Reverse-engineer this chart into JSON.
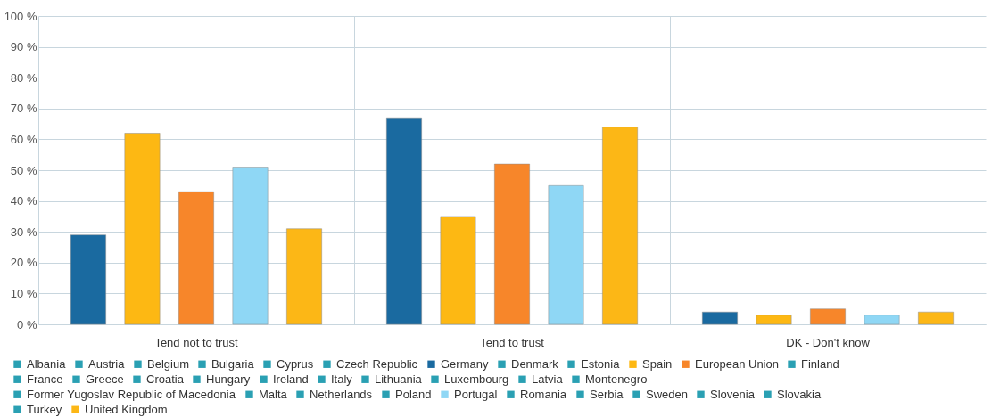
{
  "chart_data": {
    "type": "bar",
    "categories": [
      "Tend not to trust",
      "Tend to trust",
      "DK - Don't know"
    ],
    "ylim": [
      0,
      100
    ],
    "yticks": [
      {
        "value": 0,
        "label": "0 %"
      },
      {
        "value": 10,
        "label": "10 %"
      },
      {
        "value": 20,
        "label": "20 %"
      },
      {
        "value": 30,
        "label": "30 %"
      },
      {
        "value": 40,
        "label": "40 %"
      },
      {
        "value": 50,
        "label": "50 %"
      },
      {
        "value": 60,
        "label": "60 %"
      },
      {
        "value": 70,
        "label": "70 %"
      },
      {
        "value": 80,
        "label": "80 %"
      },
      {
        "value": 90,
        "label": "90 %"
      },
      {
        "value": 100,
        "label": "100 %"
      }
    ],
    "grid": true,
    "legend": "bottom",
    "series": [
      {
        "name": "Albania",
        "color": "#2aa0b3",
        "values": [
          null,
          null,
          null
        ]
      },
      {
        "name": "Austria",
        "color": "#2aa0b3",
        "values": [
          null,
          null,
          null
        ]
      },
      {
        "name": "Belgium",
        "color": "#2aa0b3",
        "values": [
          null,
          null,
          null
        ]
      },
      {
        "name": "Bulgaria",
        "color": "#2aa0b3",
        "values": [
          null,
          null,
          null
        ]
      },
      {
        "name": "Cyprus",
        "color": "#2aa0b3",
        "values": [
          null,
          null,
          null
        ]
      },
      {
        "name": "Czech Republic",
        "color": "#2aa0b3",
        "values": [
          null,
          null,
          null
        ]
      },
      {
        "name": "Germany",
        "color": "#1a6aa0",
        "values": [
          29,
          67,
          4
        ]
      },
      {
        "name": "Denmark",
        "color": "#2aa0b3",
        "values": [
          null,
          null,
          null
        ]
      },
      {
        "name": "Estonia",
        "color": "#2aa0b3",
        "values": [
          null,
          null,
          null
        ]
      },
      {
        "name": "Spain",
        "color": "#fdb813",
        "values": [
          62,
          35,
          3
        ]
      },
      {
        "name": "European Union",
        "color": "#f7862a",
        "values": [
          43,
          52,
          5
        ]
      },
      {
        "name": "Finland",
        "color": "#2aa0b3",
        "values": [
          null,
          null,
          null
        ]
      },
      {
        "name": "France",
        "color": "#2aa0b3",
        "values": [
          null,
          null,
          null
        ]
      },
      {
        "name": "Greece",
        "color": "#2aa0b3",
        "values": [
          null,
          null,
          null
        ]
      },
      {
        "name": "Croatia",
        "color": "#2aa0b3",
        "values": [
          null,
          null,
          null
        ]
      },
      {
        "name": "Hungary",
        "color": "#2aa0b3",
        "values": [
          null,
          null,
          null
        ]
      },
      {
        "name": "Ireland",
        "color": "#2aa0b3",
        "values": [
          null,
          null,
          null
        ]
      },
      {
        "name": "Italy",
        "color": "#2aa0b3",
        "values": [
          null,
          null,
          null
        ]
      },
      {
        "name": "Lithuania",
        "color": "#2aa0b3",
        "values": [
          null,
          null,
          null
        ]
      },
      {
        "name": "Luxembourg",
        "color": "#2aa0b3",
        "values": [
          null,
          null,
          null
        ]
      },
      {
        "name": "Latvia",
        "color": "#2aa0b3",
        "values": [
          null,
          null,
          null
        ]
      },
      {
        "name": "Montenegro",
        "color": "#2aa0b3",
        "values": [
          null,
          null,
          null
        ]
      },
      {
        "name": "Former Yugoslav Republic of Macedonia",
        "color": "#2aa0b3",
        "values": [
          null,
          null,
          null
        ]
      },
      {
        "name": "Malta",
        "color": "#2aa0b3",
        "values": [
          null,
          null,
          null
        ]
      },
      {
        "name": "Netherlands",
        "color": "#2aa0b3",
        "values": [
          null,
          null,
          null
        ]
      },
      {
        "name": "Poland",
        "color": "#2aa0b3",
        "values": [
          null,
          null,
          null
        ]
      },
      {
        "name": "Portugal",
        "color": "#8fd7f5",
        "values": [
          51,
          45,
          3
        ]
      },
      {
        "name": "Romania",
        "color": "#2aa0b3",
        "values": [
          null,
          null,
          null
        ]
      },
      {
        "name": "Serbia",
        "color": "#2aa0b3",
        "values": [
          null,
          null,
          null
        ]
      },
      {
        "name": "Sweden",
        "color": "#2aa0b3",
        "values": [
          null,
          null,
          null
        ]
      },
      {
        "name": "Slovenia",
        "color": "#2aa0b3",
        "values": [
          null,
          null,
          null
        ]
      },
      {
        "name": "Slovakia",
        "color": "#2aa0b3",
        "values": [
          null,
          null,
          null
        ]
      },
      {
        "name": "Turkey",
        "color": "#2aa0b3",
        "values": [
          null,
          null,
          null
        ]
      },
      {
        "name": "United Kingdom",
        "color": "#fcb716",
        "values": [
          31,
          64,
          4
        ]
      }
    ]
  }
}
